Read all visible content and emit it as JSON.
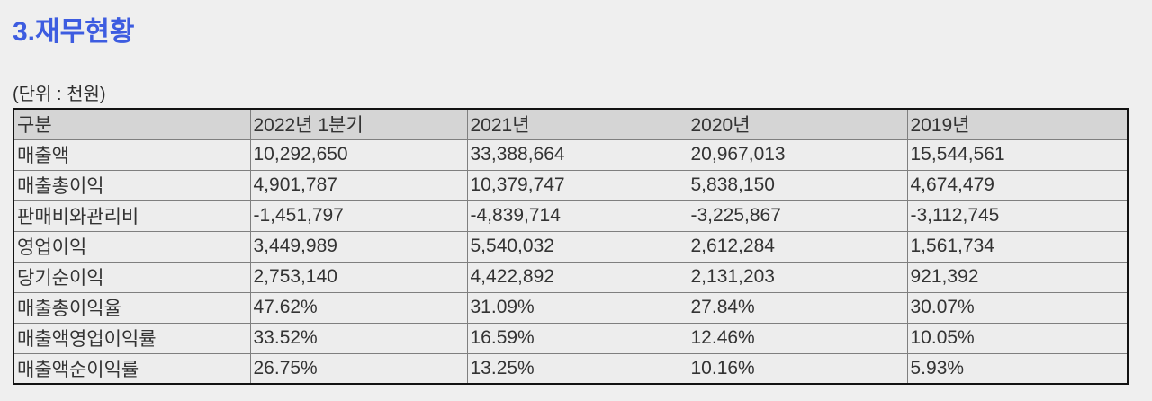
{
  "page": {
    "title": "3.재무현황",
    "unit_label": "(단위 : 천원)"
  },
  "colors": {
    "title_blue": "#3d5ce0",
    "page_background": "#efefef",
    "header_row_background": "#d5d5d5",
    "body_row_background": "#ededed",
    "outer_border": "#121212",
    "inner_border": "#7f7f7f",
    "text": "#333333"
  },
  "table": {
    "columns": [
      "구분",
      "2022년 1분기",
      "2021년",
      "2020년",
      "2019년"
    ],
    "rows": [
      {
        "label": "매출액",
        "values": [
          "10,292,650",
          "33,388,664",
          "20,967,013",
          "15,544,561"
        ]
      },
      {
        "label": "매출총이익",
        "values": [
          "4,901,787",
          "10,379,747",
          "5,838,150",
          "4,674,479"
        ]
      },
      {
        "label": "판매비와관리비",
        "values": [
          "-1,451,797",
          "-4,839,714",
          "-3,225,867",
          "-3,112,745"
        ]
      },
      {
        "label": "영업이익",
        "values": [
          "3,449,989",
          "5,540,032",
          "2,612,284",
          "1,561,734"
        ]
      },
      {
        "label": "당기순이익",
        "values": [
          "2,753,140",
          "4,422,892",
          "2,131,203",
          "921,392"
        ]
      },
      {
        "label": "매출총이익율",
        "values": [
          "47.62%",
          "31.09%",
          "27.84%",
          "30.07%"
        ]
      },
      {
        "label": "매출액영업이익률",
        "values": [
          "33.52%",
          "16.59%",
          "12.46%",
          "10.05%"
        ]
      },
      {
        "label": "매출액순이익률",
        "values": [
          "26.75%",
          "13.25%",
          "10.16%",
          "5.93%"
        ]
      }
    ]
  }
}
